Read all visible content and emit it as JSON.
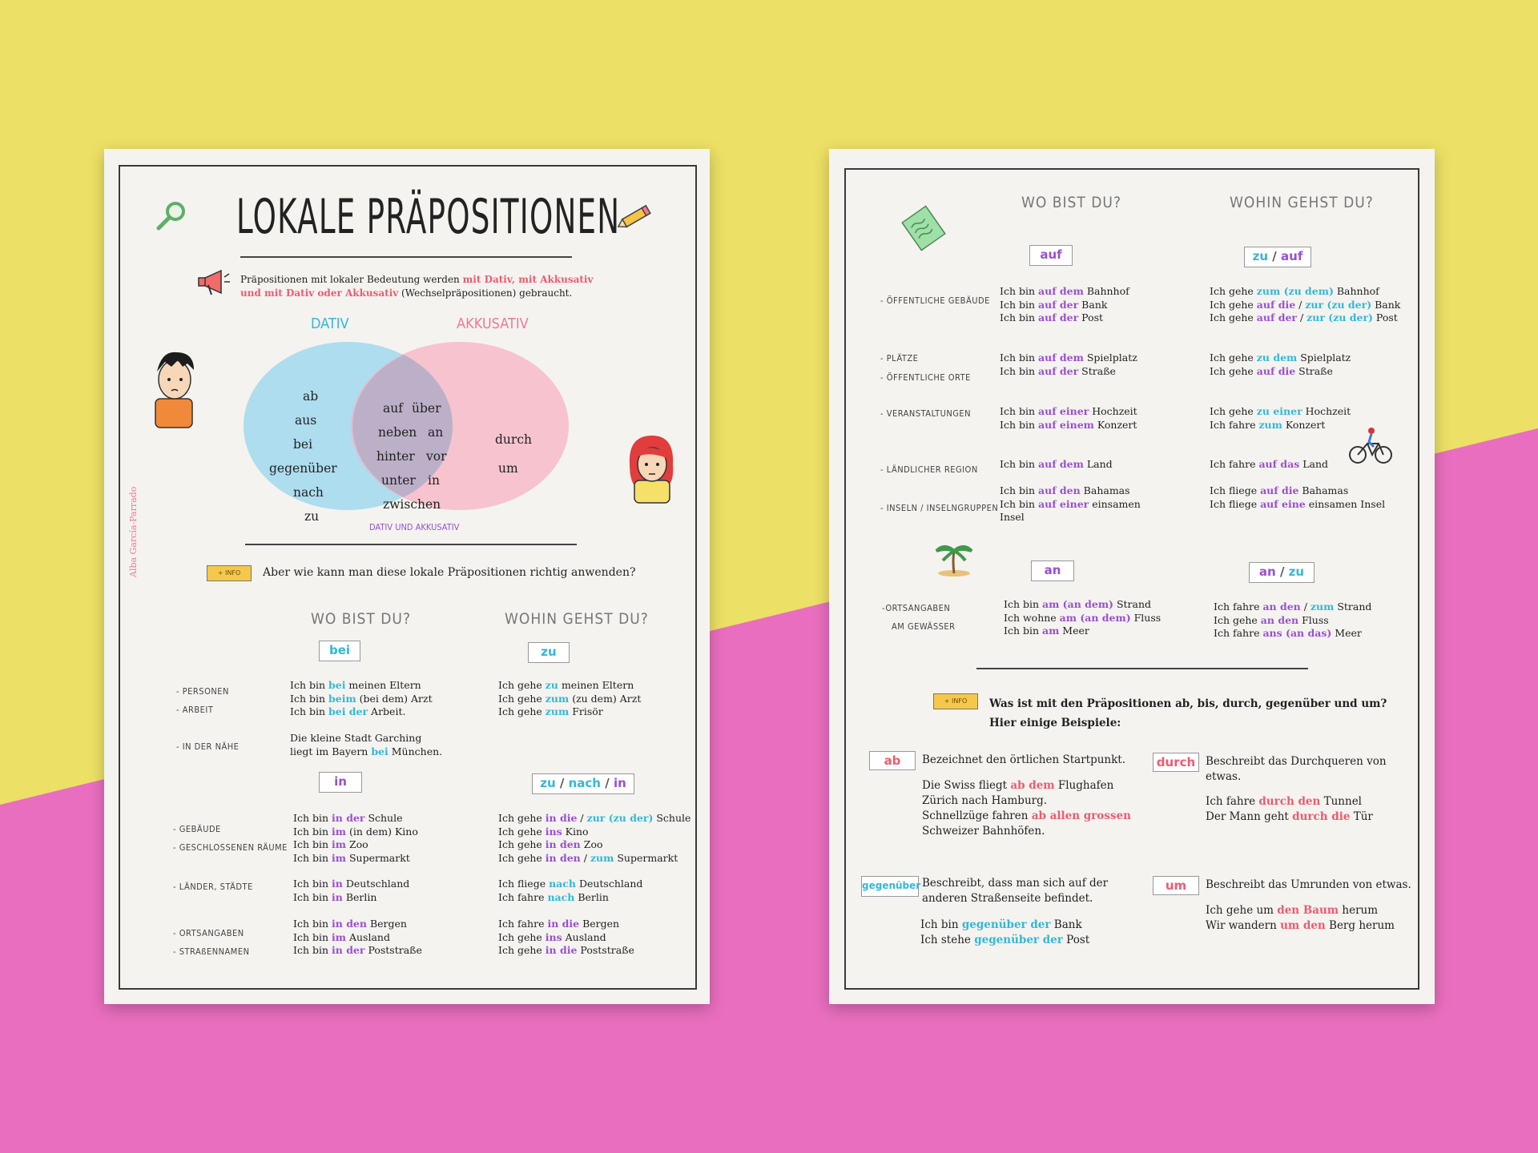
{
  "colors": {
    "bg_yellow": "#ede066",
    "bg_pink": "#ea6ebf",
    "blue": "#32b8d9",
    "purple": "#9b4fd1",
    "red": "#f05a6e"
  },
  "left": {
    "title": "LOKALE PRÄPOSITIONEN",
    "intro": [
      {
        "t": "Präpositionen mit lokaler Bedeutung werden ",
        "c": ""
      },
      {
        "t": "mit Dativ, mit Akkusativ",
        "c": "red"
      },
      {
        "t": "und mit Dativ oder Akkusativ",
        "c": "red"
      },
      {
        "t": " (Wechselpräpositionen) gebraucht.",
        "c": ""
      }
    ],
    "dativ_label": "DATIV",
    "akk_label": "AKKUSATIV",
    "both_label": "DATIV UND AKKUSATIV",
    "dativ_words": [
      "ab",
      "aus",
      "bei",
      "gegenüber",
      "nach",
      "zu"
    ],
    "both_words": [
      "auf",
      "über",
      "neben",
      "an",
      "hinter",
      "vor",
      "unter",
      "in",
      "zwischen"
    ],
    "akk_words": [
      "durch",
      "um"
    ],
    "author": "Alba García-Parrado",
    "info_tag": "+ INFO",
    "info_q": "Aber wie kann man diese lokale Präpositionen richtig anwenden?",
    "wo": "WO BIST DU?",
    "wohin": "WOHIN GEHST DU?",
    "box_bei": "bei",
    "box_zu": "zu",
    "box_in": "in",
    "box_znin": [
      "zu",
      "/",
      "nach",
      "/",
      "in"
    ],
    "cats1": [
      "- PERSONEN",
      "- ARBEIT",
      "- IN DER NÄHE"
    ],
    "cats2": [
      "- GEBÄUDE",
      "- GESCHLOSSENEN RÄUME",
      "- LÄNDER, STÄDTE",
      "- ORTSANGABEN",
      "- STRAßENNAMEN"
    ],
    "bei_rows": [
      [
        [
          "Ich bin ",
          ""
        ],
        [
          "bei",
          "blue"
        ],
        [
          " meinen Eltern",
          ""
        ]
      ],
      [
        [
          "Ich bin ",
          ""
        ],
        [
          "beim",
          "blue"
        ],
        [
          " (bei dem) Arzt",
          ""
        ]
      ],
      [
        [
          "Ich bin ",
          ""
        ],
        [
          "bei der",
          "blue"
        ],
        [
          " Arbeit.",
          ""
        ]
      ]
    ],
    "naehe_rows": [
      [
        [
          "Die kleine Stadt Garching",
          ""
        ]
      ],
      [
        [
          "liegt im Bayern ",
          ""
        ],
        [
          "bei",
          "blue"
        ],
        [
          " München.",
          ""
        ]
      ]
    ],
    "zu_rows": [
      [
        [
          "Ich gehe ",
          ""
        ],
        [
          "zu",
          "blue"
        ],
        [
          " meinen Eltern",
          ""
        ]
      ],
      [
        [
          "Ich gehe ",
          ""
        ],
        [
          "zum",
          "blue"
        ],
        [
          " (zu dem) Arzt",
          ""
        ]
      ],
      [
        [
          "Ich gehe ",
          ""
        ],
        [
          "zum",
          "blue"
        ],
        [
          " Frisör",
          ""
        ]
      ]
    ],
    "in_rows": [
      [
        [
          "Ich bin ",
          ""
        ],
        [
          "in der",
          "purple"
        ],
        [
          " Schule",
          ""
        ]
      ],
      [
        [
          "Ich bin ",
          ""
        ],
        [
          "im",
          "purple"
        ],
        [
          " (in dem) Kino",
          ""
        ]
      ],
      [
        [
          "Ich bin ",
          ""
        ],
        [
          "im",
          "purple"
        ],
        [
          " Zoo",
          ""
        ]
      ],
      [
        [
          "Ich bin ",
          ""
        ],
        [
          "im",
          "purple"
        ],
        [
          " Supermarkt",
          ""
        ]
      ]
    ],
    "in_rows2": [
      [
        [
          "Ich bin ",
          ""
        ],
        [
          "in",
          "purple"
        ],
        [
          " Deutschland",
          ""
        ]
      ],
      [
        [
          "Ich bin ",
          ""
        ],
        [
          "in",
          "purple"
        ],
        [
          " Berlin",
          ""
        ]
      ]
    ],
    "in_rows3": [
      [
        [
          "Ich bin ",
          ""
        ],
        [
          "in den",
          "purple"
        ],
        [
          " Bergen",
          ""
        ]
      ],
      [
        [
          "Ich bin ",
          ""
        ],
        [
          "im",
          "purple"
        ],
        [
          " Ausland",
          ""
        ]
      ],
      [
        [
          "Ich bin ",
          ""
        ],
        [
          "in der",
          "purple"
        ],
        [
          " Poststraße",
          ""
        ]
      ]
    ],
    "znin_rows": [
      [
        [
          "Ich gehe ",
          ""
        ],
        [
          "in die",
          "purple"
        ],
        [
          " / ",
          ""
        ],
        [
          "zur",
          "blue"
        ],
        [
          " (zu der)",
          "blue"
        ],
        [
          " Schule",
          ""
        ]
      ],
      [
        [
          "Ich gehe ",
          ""
        ],
        [
          "ins",
          "purple"
        ],
        [
          " Kino",
          ""
        ]
      ],
      [
        [
          "Ich gehe ",
          ""
        ],
        [
          "in den",
          "purple"
        ],
        [
          " Zoo",
          ""
        ]
      ],
      [
        [
          "Ich gehe ",
          ""
        ],
        [
          "in den",
          "purple"
        ],
        [
          " / ",
          ""
        ],
        [
          "zum",
          "blue"
        ],
        [
          " Supermarkt",
          ""
        ]
      ]
    ],
    "znin_rows2": [
      [
        [
          "Ich fliege ",
          ""
        ],
        [
          "nach",
          "blue"
        ],
        [
          " Deutschland",
          ""
        ]
      ],
      [
        [
          "Ich fahre ",
          ""
        ],
        [
          "nach",
          "blue"
        ],
        [
          " Berlin",
          ""
        ]
      ]
    ],
    "znin_rows3": [
      [
        [
          "Ich fahre ",
          ""
        ],
        [
          "in die",
          "purple"
        ],
        [
          " Bergen",
          ""
        ]
      ],
      [
        [
          "Ich gehe ",
          ""
        ],
        [
          "ins",
          "purple"
        ],
        [
          " Ausland",
          ""
        ]
      ],
      [
        [
          "Ich gehe ",
          ""
        ],
        [
          "in die",
          "purple"
        ],
        [
          " Poststraße",
          ""
        ]
      ]
    ]
  },
  "right": {
    "wo": "WO BIST DU?",
    "wohin": "WOHIN GEHST DU?",
    "box_auf": "auf",
    "box_zuauf": [
      "zu",
      "/",
      "auf"
    ],
    "box_an": "an",
    "box_anzu": [
      "an",
      "/",
      "zu"
    ],
    "cats": [
      "- ÖFFENTLICHE GEBÄUDE",
      "- PLÄTZE",
      "- ÖFFENTLICHE ORTE",
      "- VERANSTALTUNGEN",
      "- LÄNDLICHER REGION",
      "- INSELN / INSELNGRUPPEN",
      "-ORTSANGABEN",
      "AM GEWÄSSER"
    ],
    "auf_g": [
      [
        [
          "Ich bin ",
          ""
        ],
        [
          "auf dem",
          "purple"
        ],
        [
          " Bahnhof",
          ""
        ]
      ],
      [
        [
          "Ich bin ",
          ""
        ],
        [
          "auf der",
          "purple"
        ],
        [
          " Bank",
          ""
        ]
      ],
      [
        [
          "Ich bin ",
          ""
        ],
        [
          "auf der",
          "purple"
        ],
        [
          " Post",
          ""
        ]
      ]
    ],
    "auf_p": [
      [
        [
          "Ich bin ",
          ""
        ],
        [
          "auf dem",
          "purple"
        ],
        [
          " Spielplatz",
          ""
        ]
      ],
      [
        [
          "Ich bin ",
          ""
        ],
        [
          "auf der",
          "purple"
        ],
        [
          " Straße",
          ""
        ]
      ]
    ],
    "auf_v": [
      [
        [
          "Ich bin ",
          ""
        ],
        [
          "auf einer",
          "purple"
        ],
        [
          " Hochzeit",
          ""
        ]
      ],
      [
        [
          "Ich bin ",
          ""
        ],
        [
          "auf einem",
          "purple"
        ],
        [
          " Konzert",
          ""
        ]
      ]
    ],
    "auf_l": [
      [
        [
          "Ich bin ",
          ""
        ],
        [
          "auf dem",
          "purple"
        ],
        [
          " Land",
          ""
        ]
      ]
    ],
    "auf_i": [
      [
        [
          "Ich bin ",
          ""
        ],
        [
          "auf den",
          "purple"
        ],
        [
          " Bahamas",
          ""
        ]
      ],
      [
        [
          "Ich bin ",
          ""
        ],
        [
          "auf einer",
          "purple"
        ],
        [
          " einsamen",
          ""
        ]
      ],
      [
        [
          "Insel",
          ""
        ]
      ]
    ],
    "zuauf_g": [
      [
        [
          "Ich gehe ",
          ""
        ],
        [
          "zum",
          "blue"
        ],
        [
          " (zu dem)",
          "blue"
        ],
        [
          " Bahnhof",
          ""
        ]
      ],
      [
        [
          "Ich gehe ",
          ""
        ],
        [
          "auf die",
          "purple"
        ],
        [
          " / ",
          ""
        ],
        [
          "zur",
          "blue"
        ],
        [
          " (zu der)",
          "blue"
        ],
        [
          " Bank",
          ""
        ]
      ],
      [
        [
          "Ich gehe ",
          ""
        ],
        [
          "auf der",
          "purple"
        ],
        [
          " / ",
          ""
        ],
        [
          "zur",
          "blue"
        ],
        [
          " (zu der)",
          "blue"
        ],
        [
          " Post",
          ""
        ]
      ]
    ],
    "zuauf_p": [
      [
        [
          "Ich gehe ",
          ""
        ],
        [
          "zu dem",
          "blue"
        ],
        [
          " Spielplatz",
          ""
        ]
      ],
      [
        [
          "Ich gehe ",
          ""
        ],
        [
          "auf die",
          "purple"
        ],
        [
          " Straße",
          ""
        ]
      ]
    ],
    "zuauf_v": [
      [
        [
          "Ich gehe ",
          ""
        ],
        [
          "zu einer",
          "blue"
        ],
        [
          " Hochzeit",
          ""
        ]
      ],
      [
        [
          "Ich fahre ",
          ""
        ],
        [
          "zum",
          "blue"
        ],
        [
          " Konzert",
          ""
        ]
      ]
    ],
    "zuauf_l": [
      [
        [
          "Ich fahre ",
          ""
        ],
        [
          "auf das",
          "purple"
        ],
        [
          " Land",
          ""
        ]
      ]
    ],
    "zuauf_i": [
      [
        [
          "Ich fliege ",
          ""
        ],
        [
          "auf die",
          "purple"
        ],
        [
          " Bahamas",
          ""
        ]
      ],
      [
        [
          "Ich fliege ",
          ""
        ],
        [
          "auf eine",
          "purple"
        ],
        [
          " einsamen Insel",
          ""
        ]
      ]
    ],
    "an_rows": [
      [
        [
          "Ich bin ",
          ""
        ],
        [
          "am",
          "purple"
        ],
        [
          " (an dem)",
          "purple"
        ],
        [
          " Strand",
          ""
        ]
      ],
      [
        [
          "Ich wohne ",
          ""
        ],
        [
          "am",
          "purple"
        ],
        [
          " (an dem)",
          "purple"
        ],
        [
          " Fluss",
          ""
        ]
      ],
      [
        [
          "Ich bin ",
          ""
        ],
        [
          "am",
          "purple"
        ],
        [
          " Meer",
          ""
        ]
      ]
    ],
    "anzu_rows": [
      [
        [
          "Ich fahre ",
          ""
        ],
        [
          "an den",
          "purple"
        ],
        [
          " / ",
          ""
        ],
        [
          "zum",
          "blue"
        ],
        [
          " Strand",
          ""
        ]
      ],
      [
        [
          "Ich gehe ",
          ""
        ],
        [
          "an den",
          "purple"
        ],
        [
          " Fluss",
          ""
        ]
      ],
      [
        [
          "Ich fahre ",
          ""
        ],
        [
          "ans",
          "purple"
        ],
        [
          " (an das)",
          "purple"
        ],
        [
          " Meer",
          ""
        ]
      ]
    ],
    "info_tag": "+ INFO",
    "info_q1": "Was ist mit den Präpositionen ab, bis, durch, gegenüber und um?",
    "info_q2": "Hier einige Beispiele:",
    "box_ab": "ab",
    "ab_desc": "Bezeichnet den örtlichen Startpunkt.",
    "ab_rows": [
      [
        [
          "Die Swiss fliegt ",
          ""
        ],
        [
          "ab dem",
          "red"
        ],
        [
          " Flughafen",
          ""
        ]
      ],
      [
        [
          "Zürich nach Hamburg.",
          ""
        ]
      ],
      [
        [
          "Schnellzüge fahren ",
          ""
        ],
        [
          "ab allen grossen",
          "red"
        ]
      ],
      [
        [
          "Schweizer Bahnhöfen.",
          ""
        ]
      ]
    ],
    "box_durch": "durch",
    "durch_desc": [
      [
        [
          "Beschreibt das Durchqueren von",
          ""
        ]
      ],
      [
        [
          "etwas.",
          ""
        ]
      ]
    ],
    "durch_rows": [
      [
        [
          "Ich fahre ",
          ""
        ],
        [
          "durch den",
          "red"
        ],
        [
          " Tunnel",
          ""
        ]
      ],
      [
        [
          "Der Mann geht ",
          ""
        ],
        [
          "durch die",
          "red"
        ],
        [
          " Tür",
          ""
        ]
      ]
    ],
    "box_gegen": "gegenüber",
    "gegen_desc": [
      [
        [
          "Beschreibt, dass man sich auf der",
          ""
        ]
      ],
      [
        [
          "anderen Straßenseite befindet.",
          ""
        ]
      ]
    ],
    "gegen_rows": [
      [
        [
          "Ich bin ",
          ""
        ],
        [
          "gegenüber der",
          "blue"
        ],
        [
          " Bank",
          ""
        ]
      ],
      [
        [
          "Ich stehe ",
          ""
        ],
        [
          "gegenüber der",
          "blue"
        ],
        [
          " Post",
          ""
        ]
      ]
    ],
    "box_um": "um",
    "um_desc": "Beschreibt das Umrunden von etwas.",
    "um_rows": [
      [
        [
          "Ich gehe um ",
          ""
        ],
        [
          "den Baum",
          "red"
        ],
        [
          " herum",
          ""
        ]
      ],
      [
        [
          "Wir wandern ",
          ""
        ],
        [
          "um den",
          "red"
        ],
        [
          " Berg herum",
          ""
        ]
      ]
    ]
  }
}
